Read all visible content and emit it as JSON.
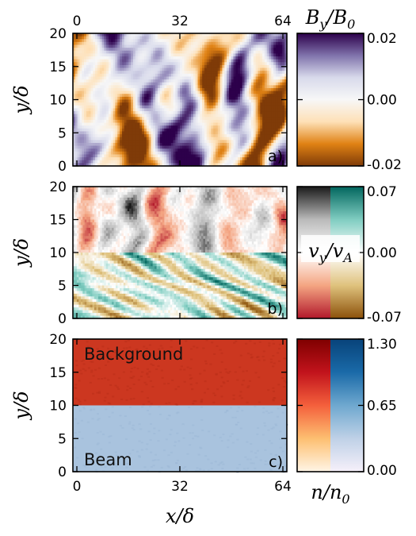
{
  "chart_data": [
    {
      "type": "heatmap",
      "panel_label": "a)",
      "quantity": "B_y/B_0",
      "colorbar_title": {
        "base": "B",
        "sub": "y",
        "sep": "/",
        "base2": "B",
        "sub2": "0"
      },
      "x_ticks": [
        "0",
        "32",
        "64"
      ],
      "y_ticks": [
        "0",
        "5",
        "10",
        "15",
        "20"
      ],
      "xlim": [
        0,
        64
      ],
      "ylim": [
        0,
        20
      ],
      "colorbar_ticks": [
        "0.02",
        "0.00",
        "-0.02"
      ],
      "clim": [
        -0.02,
        0.02
      ],
      "ylabel": {
        "base": "y",
        "sep": "/",
        "base2": "δ"
      },
      "colormap": [
        "#7f3b08",
        "#e08214",
        "#fee0b6",
        "#f7f7f7",
        "#d8daeb",
        "#8073ac",
        "#2d004b"
      ]
    },
    {
      "type": "heatmap",
      "panel_label": "b)",
      "quantity": "v_y/v_A",
      "colorbar_title": {
        "base": "v",
        "sub": "y",
        "sep": "/",
        "base2": "v",
        "sub2": "A"
      },
      "x_ticks": [
        "",
        "",
        ""
      ],
      "y_ticks": [
        "0",
        "5",
        "10",
        "15",
        "20"
      ],
      "xlim": [
        0,
        64
      ],
      "ylim": [
        0,
        20
      ],
      "colorbar_ticks": [
        "0.07",
        "0.00",
        "-0.07"
      ],
      "clim": [
        -0.07,
        0.07
      ],
      "ylabel": {
        "base": "y",
        "sep": "/",
        "base2": "δ"
      },
      "regions": [
        {
          "y_range": [
            10,
            20
          ],
          "colormap": [
            "#b2182b",
            "#f4a582",
            "#ffffff",
            "#bababa",
            "#1a1a1a"
          ]
        },
        {
          "y_range": [
            0,
            10
          ],
          "colormap": [
            "#8c510a",
            "#dfc27d",
            "#ffffff",
            "#80cdc1",
            "#01665e"
          ]
        }
      ]
    },
    {
      "type": "heatmap",
      "panel_label": "c)",
      "quantity": "n/n_0",
      "colorbar_title": {
        "base": "n",
        "sep": "/",
        "base2": "n",
        "sub2": "0"
      },
      "x_ticks": [
        "0",
        "32",
        "64"
      ],
      "y_ticks": [
        "0",
        "5",
        "10",
        "15",
        "20"
      ],
      "xlim": [
        0,
        64
      ],
      "ylim": [
        0,
        20
      ],
      "colorbar_ticks": [
        "1.30",
        "0.65",
        "0.00"
      ],
      "clim": [
        0.0,
        1.3
      ],
      "xlabel": {
        "base": "x",
        "sep": "/",
        "base2": "δ"
      },
      "ylabel": {
        "base": "y",
        "sep": "/",
        "base2": "δ"
      },
      "annotations": [
        "Background",
        "Beam"
      ],
      "regions": [
        {
          "name": "Background",
          "y_range": [
            10,
            20
          ],
          "value": 1.0,
          "color": "#cc3720"
        },
        {
          "name": "Beam",
          "y_range": [
            0,
            10
          ],
          "value": 0.5,
          "color": "#a9c3de"
        }
      ],
      "colorbars": [
        {
          "colormap": [
            "#fff5e6",
            "#fdbf71",
            "#f4603c",
            "#c1131c",
            "#7f0000"
          ]
        },
        {
          "colormap": [
            "#f6f0fa",
            "#bfd1e7",
            "#6fa8cf",
            "#1a6aa8",
            "#08437a"
          ]
        }
      ]
    }
  ]
}
